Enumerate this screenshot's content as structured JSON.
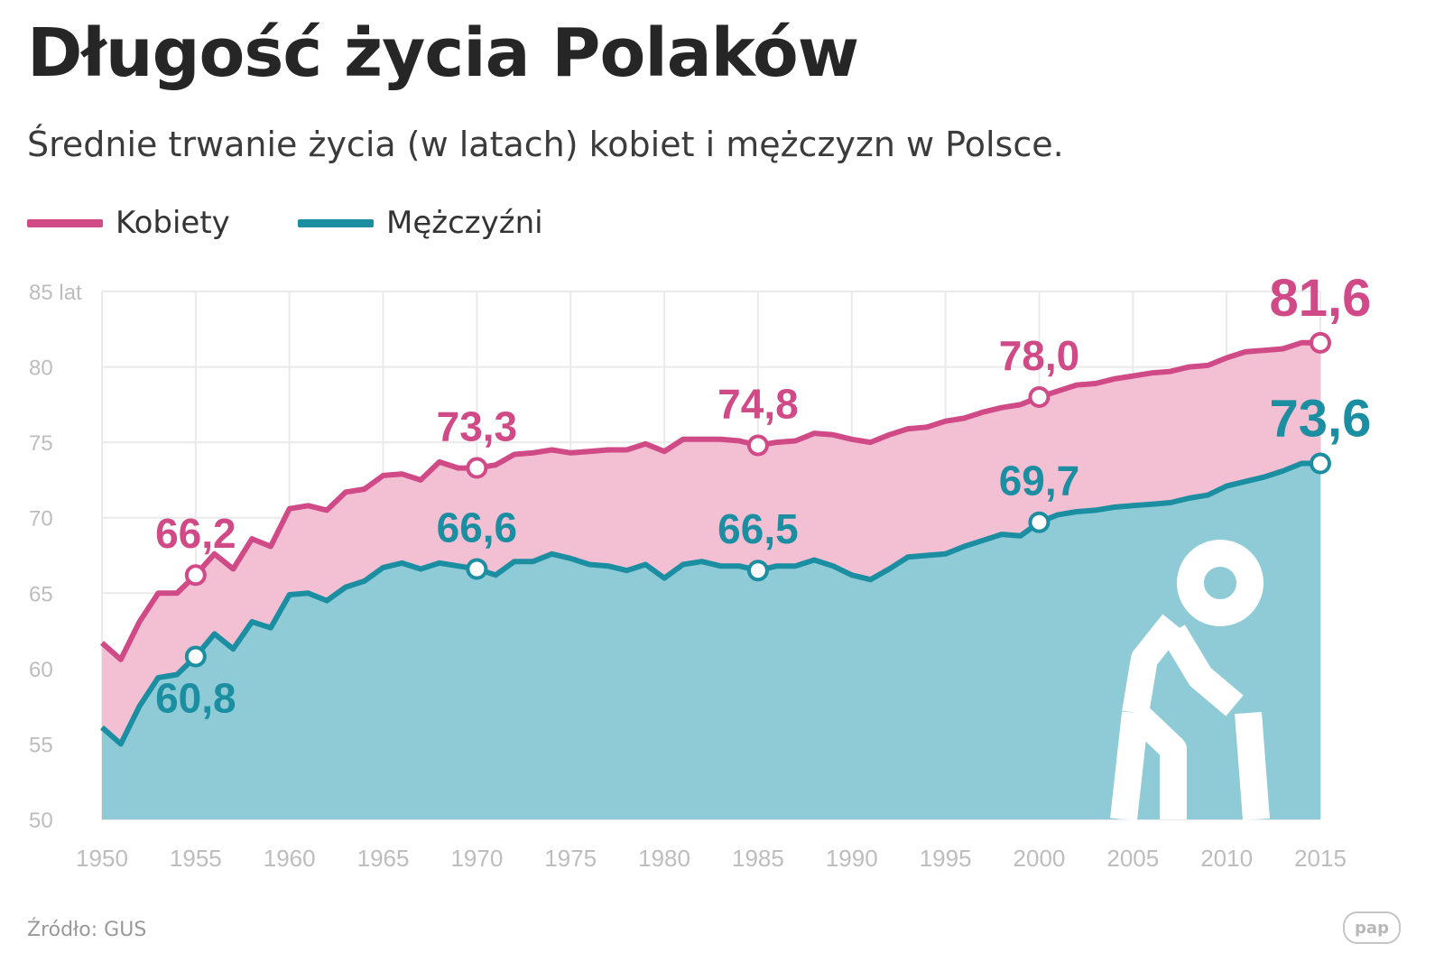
{
  "header": {
    "title": "Długość życia Polaków",
    "subtitle": "Średnie trwanie życia (w latach) kobiet i mężczyzn w Polsce."
  },
  "legend": [
    {
      "label": "Kobiety",
      "color": "#cf4a86"
    },
    {
      "label": "Mężczyźni",
      "color": "#1b8ea1"
    }
  ],
  "footer": {
    "source": "Źródło: GUS",
    "logo_text": "pap"
  },
  "icon": "elderly-person-with-cane-icon",
  "colors": {
    "women_line": "#cf4a86",
    "women_fill": "#f3bfd3",
    "men_line": "#1b8ea1",
    "men_fill": "#8ecbd6",
    "grid": "#eaeaea",
    "tick": "#bdbdbd"
  },
  "chart_data": {
    "type": "area",
    "title": "Długość życia Polaków",
    "subtitle": "Średnie trwanie życia (w latach) kobiet i mężczyzn w Polsce.",
    "xlim": [
      1950,
      2015
    ],
    "ylim": [
      50,
      85
    ],
    "x_ticks": [
      "1950",
      "1955",
      "1960",
      "1965",
      "1970",
      "1975",
      "1980",
      "1985",
      "1990",
      "1995",
      "2000",
      "2005",
      "2010",
      "2015"
    ],
    "y_ticks": [
      {
        "value": 85,
        "label": "85 lat"
      },
      {
        "value": 80,
        "label": "80"
      },
      {
        "value": 75,
        "label": "75"
      },
      {
        "value": 70,
        "label": "70"
      },
      {
        "value": 65,
        "label": "65"
      },
      {
        "value": 60,
        "label": "60"
      },
      {
        "value": 55,
        "label": "55"
      },
      {
        "value": 50,
        "label": "50"
      }
    ],
    "grid": true,
    "legend_position": "top-left",
    "x": [
      1950,
      1951,
      1952,
      1953,
      1954,
      1955,
      1956,
      1957,
      1958,
      1959,
      1960,
      1961,
      1962,
      1963,
      1964,
      1965,
      1966,
      1967,
      1968,
      1969,
      1970,
      1971,
      1972,
      1973,
      1974,
      1975,
      1976,
      1977,
      1978,
      1979,
      1980,
      1981,
      1982,
      1983,
      1984,
      1985,
      1986,
      1987,
      1988,
      1989,
      1990,
      1991,
      1992,
      1993,
      1994,
      1995,
      1996,
      1997,
      1998,
      1999,
      2000,
      2001,
      2002,
      2003,
      2004,
      2005,
      2006,
      2007,
      2008,
      2009,
      2010,
      2011,
      2012,
      2013,
      2014,
      2015
    ],
    "series": [
      {
        "name": "Kobiety",
        "values": [
          61.7,
          60.6,
          63.1,
          65.0,
          65.0,
          66.2,
          67.6,
          66.6,
          68.6,
          68.1,
          70.6,
          70.8,
          70.5,
          71.7,
          71.9,
          72.8,
          72.9,
          72.5,
          73.7,
          73.3,
          73.3,
          73.5,
          74.2,
          74.3,
          74.5,
          74.3,
          74.4,
          74.5,
          74.5,
          74.9,
          74.4,
          75.2,
          75.2,
          75.2,
          75.1,
          74.8,
          75.0,
          75.1,
          75.6,
          75.5,
          75.2,
          75.0,
          75.5,
          75.9,
          76.0,
          76.4,
          76.6,
          77.0,
          77.3,
          77.5,
          78.0,
          78.4,
          78.8,
          78.9,
          79.2,
          79.4,
          79.6,
          79.7,
          80.0,
          80.1,
          80.6,
          81.0,
          81.1,
          81.2,
          81.6,
          81.6
        ]
      },
      {
        "name": "Mężczyźni",
        "values": [
          56.1,
          55.0,
          57.5,
          59.4,
          59.6,
          60.8,
          62.3,
          61.3,
          63.1,
          62.7,
          64.9,
          65.0,
          64.5,
          65.4,
          65.8,
          66.7,
          67.0,
          66.6,
          67.0,
          66.8,
          66.6,
          66.2,
          67.1,
          67.1,
          67.6,
          67.3,
          66.9,
          66.8,
          66.5,
          66.9,
          66.0,
          66.9,
          67.1,
          66.8,
          66.8,
          66.5,
          66.8,
          66.8,
          67.2,
          66.8,
          66.2,
          65.9,
          66.6,
          67.4,
          67.5,
          67.6,
          68.1,
          68.5,
          68.9,
          68.8,
          69.7,
          70.2,
          70.4,
          70.5,
          70.7,
          70.8,
          70.9,
          71.0,
          71.3,
          71.5,
          72.1,
          72.4,
          72.7,
          73.1,
          73.6,
          73.6
        ]
      }
    ],
    "annotations": [
      {
        "series": "Kobiety",
        "x": 1955,
        "y": 66.2,
        "label": "66,2",
        "pos": "above"
      },
      {
        "series": "Kobiety",
        "x": 1970,
        "y": 73.3,
        "label": "73,3",
        "pos": "above"
      },
      {
        "series": "Kobiety",
        "x": 1985,
        "y": 74.8,
        "label": "74,8",
        "pos": "above"
      },
      {
        "series": "Kobiety",
        "x": 2000,
        "y": 78.0,
        "label": "78,0",
        "pos": "above"
      },
      {
        "series": "Kobiety",
        "x": 2015,
        "y": 81.6,
        "label": "81,6",
        "pos": "above"
      },
      {
        "series": "Mężczyźni",
        "x": 1955,
        "y": 60.8,
        "label": "60,8",
        "pos": "below"
      },
      {
        "series": "Mężczyźni",
        "x": 1970,
        "y": 66.6,
        "label": "66,6",
        "pos": "above"
      },
      {
        "series": "Mężczyźni",
        "x": 1985,
        "y": 66.5,
        "label": "66,5",
        "pos": "above"
      },
      {
        "series": "Mężczyźni",
        "x": 2000,
        "y": 69.7,
        "label": "69,7",
        "pos": "above"
      },
      {
        "series": "Mężczyźni",
        "x": 2015,
        "y": 73.6,
        "label": "73,6",
        "pos": "above"
      }
    ]
  }
}
